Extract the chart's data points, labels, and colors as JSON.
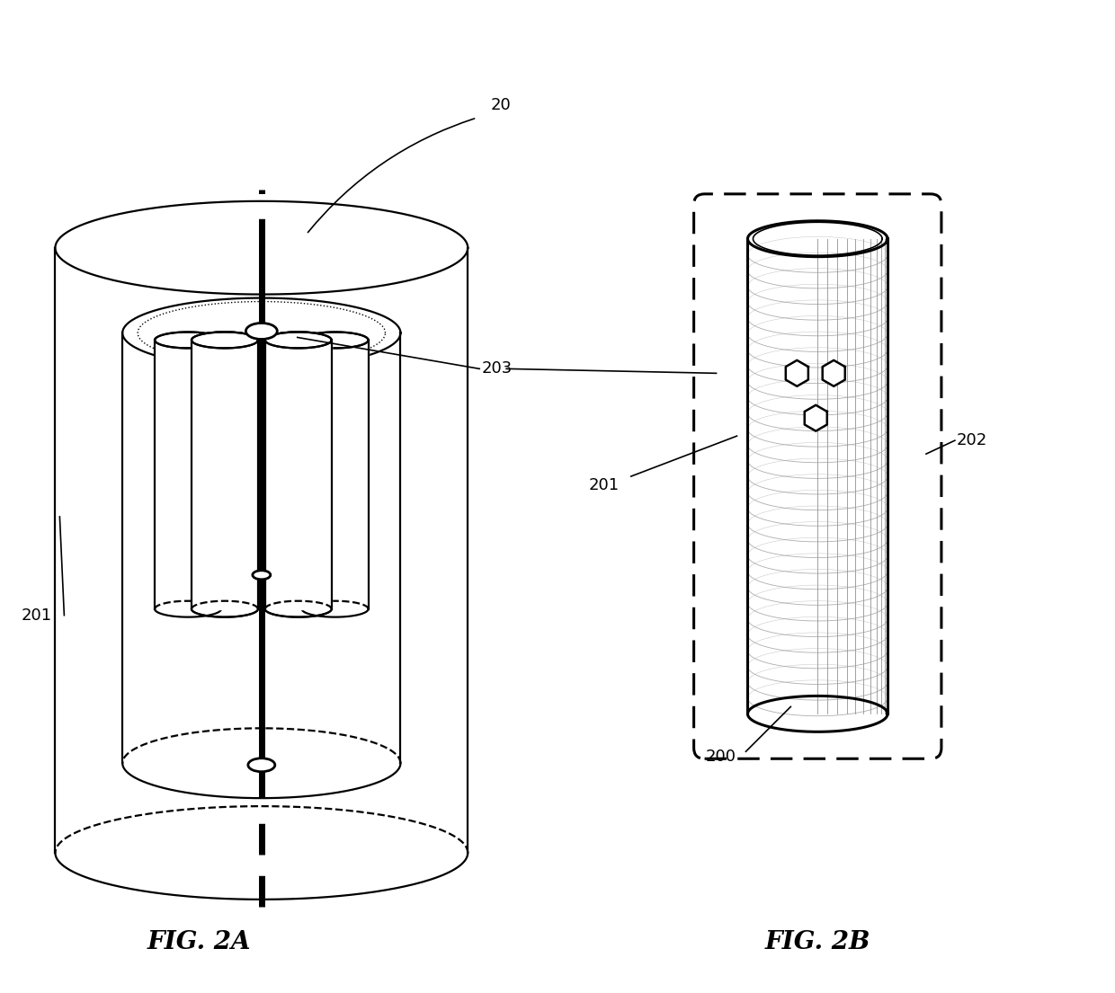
{
  "bg_color": "#ffffff",
  "line_color": "#000000",
  "fig_width": 12.4,
  "fig_height": 11.05,
  "label_20": "20",
  "label_201_left": "201",
  "label_203": "203",
  "label_201_right": "201",
  "label_202": "202",
  "label_200": "200",
  "label_fig2a": "FIG. 2A",
  "label_fig2b": "FIG. 2B",
  "mesh_color": "#999999",
  "shade_color": "#cccccc"
}
